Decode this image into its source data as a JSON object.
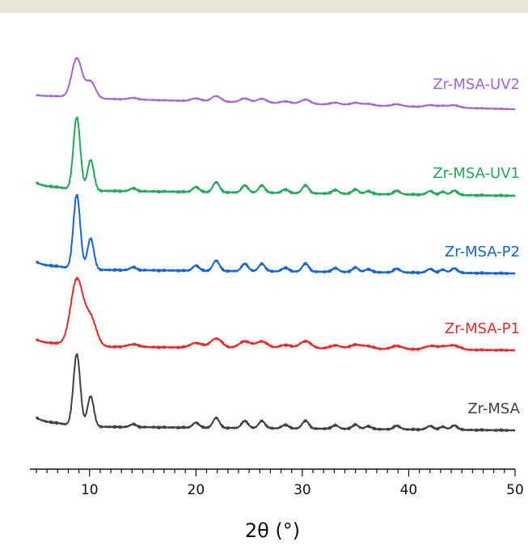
{
  "chart_data": {
    "type": "line",
    "title": "",
    "xlabel": "2θ (°)",
    "ylabel": "",
    "xlim": [
      5,
      50
    ],
    "x_ticks": [
      10,
      20,
      30,
      40,
      50
    ],
    "x_minor_step": 1,
    "grid": false,
    "legend": "inline labels at right end of each trace",
    "peaks": [
      {
        "x": 8.8,
        "w": 0.32,
        "h": 1.0
      },
      {
        "x": 10.1,
        "w": 0.3,
        "h": 0.42
      },
      {
        "x": 14.1,
        "w": 0.3,
        "h": 0.04
      },
      {
        "x": 20.0,
        "w": 0.3,
        "h": 0.07
      },
      {
        "x": 21.9,
        "w": 0.3,
        "h": 0.14
      },
      {
        "x": 24.6,
        "w": 0.3,
        "h": 0.1
      },
      {
        "x": 26.2,
        "w": 0.3,
        "h": 0.1
      },
      {
        "x": 28.4,
        "w": 0.3,
        "h": 0.05
      },
      {
        "x": 30.3,
        "w": 0.3,
        "h": 0.11
      },
      {
        "x": 33.1,
        "w": 0.3,
        "h": 0.05
      },
      {
        "x": 35.0,
        "w": 0.3,
        "h": 0.06
      },
      {
        "x": 36.2,
        "w": 0.3,
        "h": 0.04
      },
      {
        "x": 38.9,
        "w": 0.3,
        "h": 0.05
      },
      {
        "x": 42.0,
        "w": 0.3,
        "h": 0.05
      },
      {
        "x": 43.2,
        "w": 0.3,
        "h": 0.04
      },
      {
        "x": 44.3,
        "w": 0.3,
        "h": 0.06
      }
    ],
    "series": [
      {
        "name": "Zr-MSA-UV2",
        "color": "#a464e0",
        "scale": 0.66,
        "broad": 1.5,
        "start_rise": 0.05
      },
      {
        "name": "Zr-MSA-UV1",
        "color": "#22a85a",
        "scale": 1.0,
        "broad": 1.0,
        "start_rise": 0.1
      },
      {
        "name": "Zr-MSA-P2",
        "color": "#1464d8",
        "scale": 1.0,
        "broad": 1.0,
        "start_rise": 0.1
      },
      {
        "name": "Zr-MSA-P1",
        "color": "#e8282a",
        "scale": 0.95,
        "broad": 1.8,
        "start_rise": 0.1
      },
      {
        "name": "Zr-MSA",
        "color": "#404040",
        "scale": 1.0,
        "broad": 1.0,
        "start_rise": 0.12
      }
    ]
  }
}
